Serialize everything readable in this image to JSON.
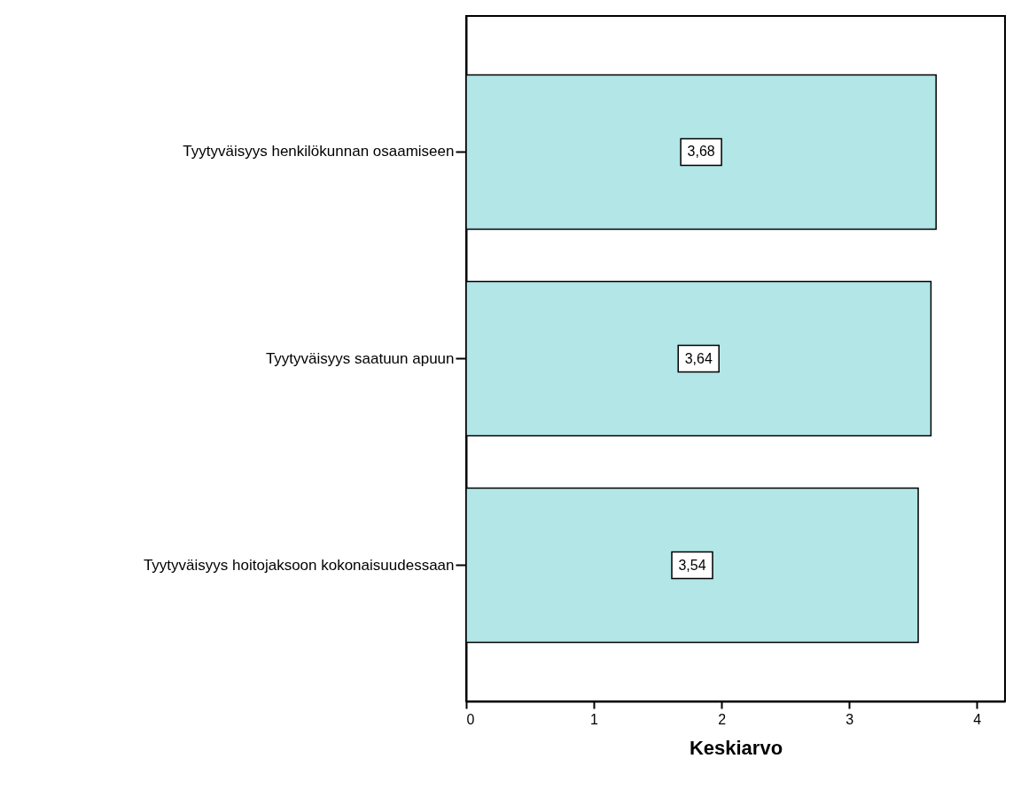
{
  "chart_data": {
    "type": "bar",
    "orientation": "horizontal",
    "xlabel": "Keskiarvo",
    "categories": [
      "Tyytyväisyys henkilökunnan osaamiseen",
      "Tyytyväisyys saatuun apuun",
      "Tyytyväisyys hoitojaksoon kokonaisuudessaan"
    ],
    "values": [
      3.68,
      3.64,
      3.54
    ],
    "value_labels": [
      "3,68",
      "3,64",
      "3,54"
    ],
    "color": "#b3e6e6",
    "xlim": [
      0,
      4.22
    ],
    "xticks": [
      0,
      1,
      2,
      3,
      4
    ]
  }
}
